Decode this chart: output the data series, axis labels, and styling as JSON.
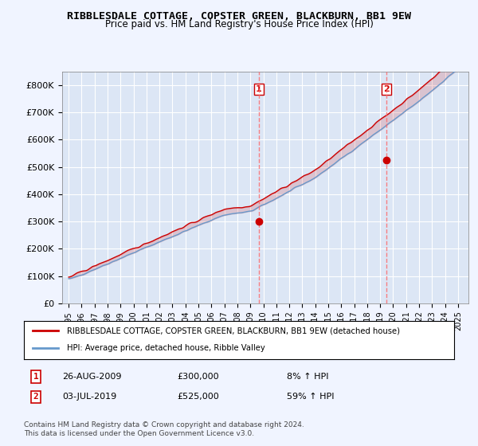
{
  "title1": "RIBBLESDALE COTTAGE, COPSTER GREEN, BLACKBURN, BB1 9EW",
  "title2": "Price paid vs. HM Land Registry's House Price Index (HPI)",
  "ylabel_vals": [
    "£0",
    "£100K",
    "£200K",
    "£300K",
    "£400K",
    "£500K",
    "£600K",
    "£700K",
    "£800K"
  ],
  "ylim": [
    0,
    850000
  ],
  "xlim_start": 1995,
  "xlim_end": 2025.5,
  "background_color": "#f0f4ff",
  "plot_bg": "#dce6f5",
  "grid_color": "#ffffff",
  "purchase1_date": 2009.65,
  "purchase1_price": 300000,
  "purchase2_date": 2019.5,
  "purchase2_price": 525000,
  "purchase1_label": "1",
  "purchase2_label": "2",
  "vline_color": "#ff6666",
  "legend_line1": "RIBBLESDALE COTTAGE, COPSTER GREEN, BLACKBURN, BB1 9EW (detached house)",
  "legend_line2": "HPI: Average price, detached house, Ribble Valley",
  "table_row1": [
    "1",
    "26-AUG-2009",
    "£300,000",
    "8% ↑ HPI"
  ],
  "table_row2": [
    "2",
    "03-JUL-2019",
    "£525,000",
    "59% ↑ HPI"
  ],
  "footer": "Contains HM Land Registry data © Crown copyright and database right 2024.\nThis data is licensed under the Open Government Licence v3.0.",
  "hpi_color": "#6699cc",
  "price_color": "#cc0000",
  "hpi_color_light": "#aabbdd"
}
